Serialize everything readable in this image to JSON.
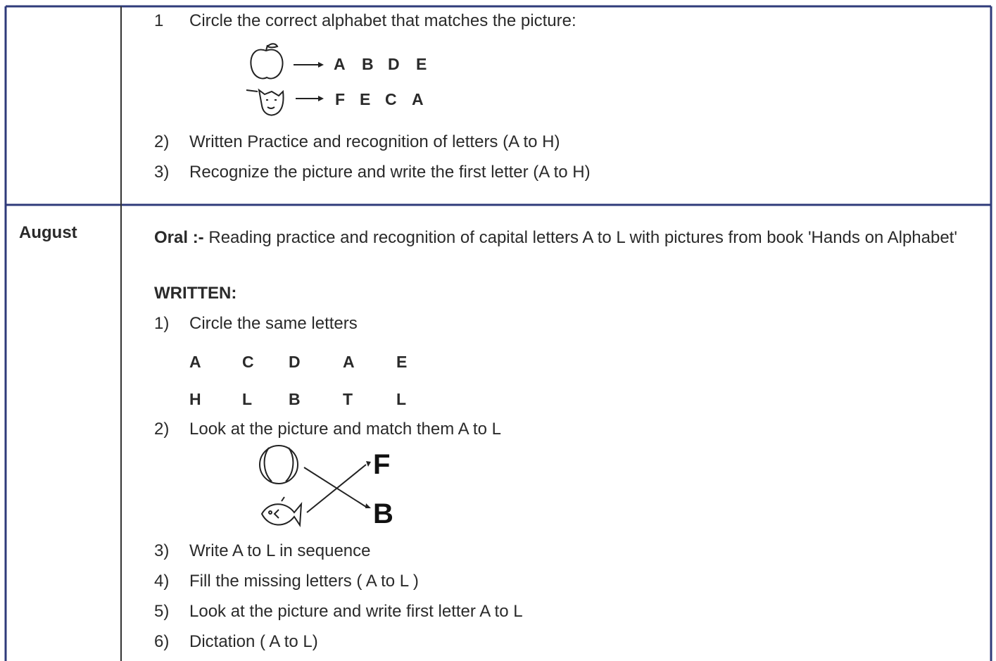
{
  "table": {
    "rows": [
      {
        "items": [
          {
            "number": "1",
            "text": "Circle the correct alphabet that matches the picture:",
            "letter_rows": [
              [
                "A",
                "B",
                "D",
                "E"
              ],
              [
                "F",
                "E",
                "C",
                "A"
              ]
            ]
          },
          {
            "number": "2)",
            "text": "Written Practice and recognition of letters (A to H)"
          },
          {
            "number": "3)",
            "text": "Recognize the picture and write the first letter (A to H)"
          }
        ]
      },
      {
        "month": "August",
        "oral": {
          "label": "Oral :-",
          "text": "Reading practice and recognition of capital letters A to L with pictures from book  'Hands on Alphabet'"
        },
        "written_label": "WRITTEN:",
        "items": [
          {
            "number": "1)",
            "text": "Circle the same letters",
            "letter_rows": [
              [
                "A",
                "C",
                "D",
                "A",
                "E"
              ],
              [
                "H",
                "L",
                "B",
                "T",
                "L"
              ]
            ]
          },
          {
            "number": "2)",
            "text": "Look at the picture and match them A to L",
            "match_letters": [
              "F",
              "B"
            ]
          },
          {
            "number": "3)",
            "text": "Write A to L in sequence"
          },
          {
            "number": "4)",
            "text": "Fill the missing letters ( A to L )"
          },
          {
            "number": "5)",
            "text": "Look at the picture and write first letter A to L"
          },
          {
            "number": "6)",
            "text": "Dictation ( A to L)"
          }
        ]
      }
    ]
  }
}
